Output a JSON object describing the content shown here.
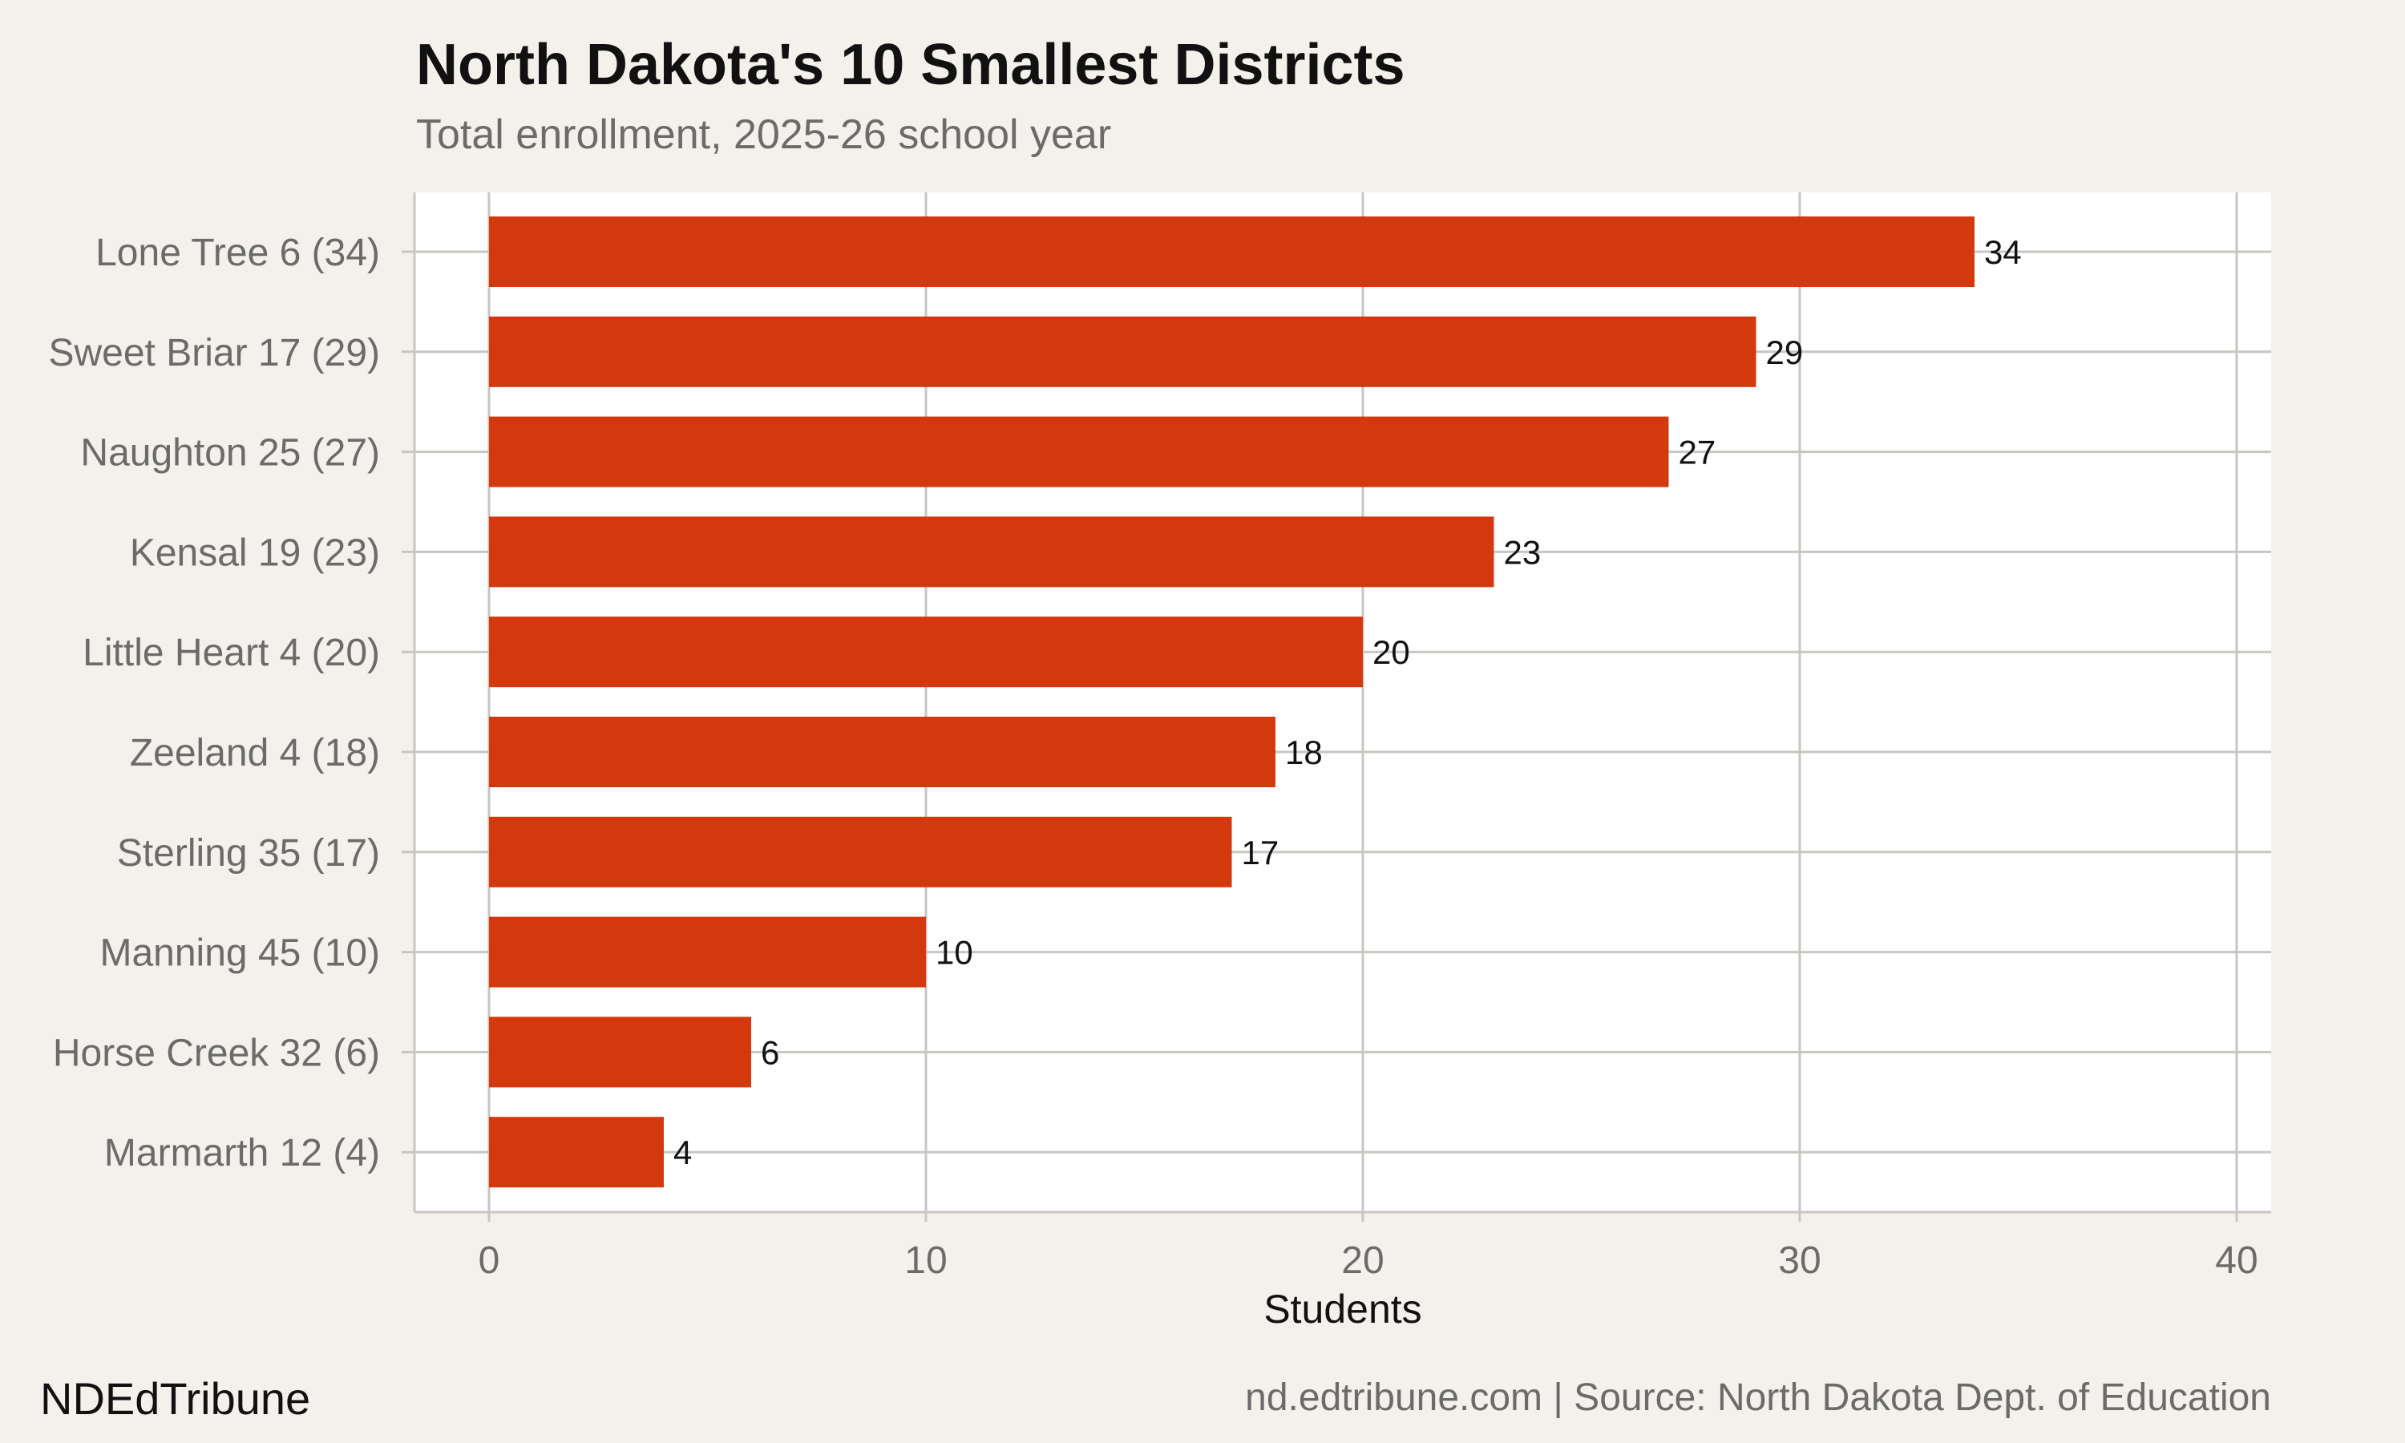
{
  "title": "North Dakota's 10 Smallest Districts",
  "subtitle": "Total enrollment, 2025-26 school year",
  "footer": {
    "brand": "NDEdTribune",
    "source": "nd.edtribune.com | Source: North Dakota Dept. of Education"
  },
  "colors": {
    "bar": "#d4380d",
    "background": "#f4f1ec",
    "panel": "#ffffff",
    "grid": "#c8c6c1",
    "axis_text": "#6b6b6b",
    "value_text": "#111111"
  },
  "chart_data": {
    "type": "bar",
    "orientation": "horizontal",
    "categories": [
      "Lone Tree 6 (34)",
      "Sweet Briar 17 (29)",
      "Naughton 25 (27)",
      "Kensal 19 (23)",
      "Little Heart 4 (20)",
      "Zeeland 4 (18)",
      "Sterling 35 (17)",
      "Manning 45 (10)",
      "Horse Creek 32 (6)",
      "Marmarth 12 (4)"
    ],
    "values": [
      34,
      29,
      27,
      23,
      20,
      18,
      17,
      10,
      6,
      4
    ],
    "value_labels": [
      "34",
      "29",
      "27",
      "23",
      "20",
      "18",
      "17",
      "10",
      "6",
      "4"
    ],
    "xlabel": "Students",
    "ylabel": "",
    "xlim": [
      0,
      40
    ],
    "xticks": [
      "0",
      "10",
      "20",
      "30",
      "40"
    ],
    "grid": true
  }
}
